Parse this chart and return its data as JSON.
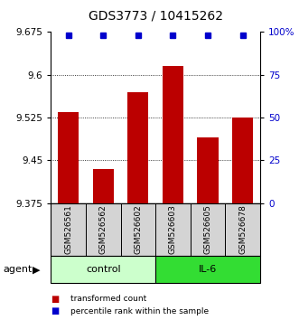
{
  "title": "GDS3773 / 10415262",
  "samples": [
    "GSM526561",
    "GSM526562",
    "GSM526602",
    "GSM526603",
    "GSM526605",
    "GSM526678"
  ],
  "bar_values": [
    9.535,
    9.435,
    9.57,
    9.615,
    9.49,
    9.525
  ],
  "percentile_values": [
    9.67,
    9.67,
    9.67,
    9.67,
    9.67,
    9.67
  ],
  "ylim": [
    9.375,
    9.675
  ],
  "yticks": [
    9.375,
    9.45,
    9.525,
    9.6,
    9.675
  ],
  "ytick_labels_left": [
    "9.375",
    "9.45",
    "9.525",
    "9.6",
    "9.675"
  ],
  "ytick_labels_right": [
    "0",
    "25",
    "50",
    "75",
    "100%"
  ],
  "bar_color": "#bb0000",
  "dot_color": "#0000cc",
  "groups": [
    {
      "label": "control",
      "indices": [
        0,
        1,
        2
      ],
      "color": "#ccffcc"
    },
    {
      "label": "IL-6",
      "indices": [
        3,
        4,
        5
      ],
      "color": "#33dd33"
    }
  ],
  "agent_label": "agent",
  "legend_items": [
    {
      "color": "#bb0000",
      "label": "transformed count"
    },
    {
      "color": "#0000cc",
      "label": "percentile rank within the sample"
    }
  ],
  "bar_width": 0.6,
  "sample_label_fontsize": 6.5,
  "title_fontsize": 10,
  "bg_color": "#ffffff"
}
